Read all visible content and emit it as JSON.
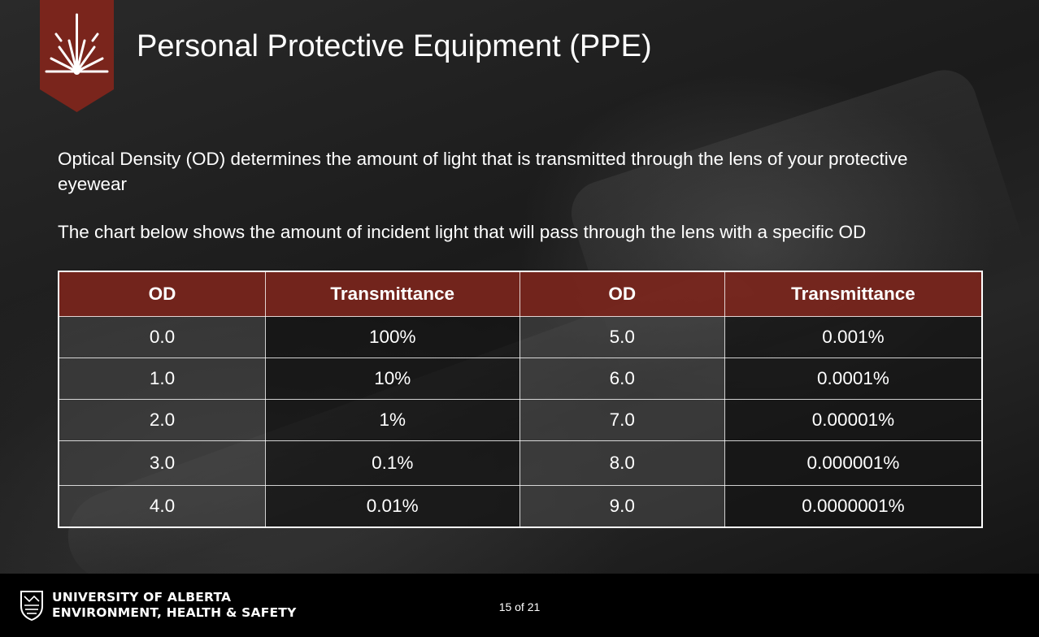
{
  "slide": {
    "title": "Personal Protective Equipment (PPE)",
    "paragraph_1": "Optical Density (OD) determines the amount of light that is transmitted through the lens of your protective eyewear",
    "paragraph_2": "The chart below shows the amount of incident light that will pass through the lens with a specific OD",
    "banner_icon": "laser-burst-icon",
    "colors": {
      "accent": "#7a251c",
      "text": "#ffffff",
      "footer": "#000000"
    }
  },
  "table": {
    "headers": [
      "OD",
      "Transmittance",
      "OD",
      "Transmittance"
    ],
    "rows": [
      [
        "0.0",
        "100%",
        "5.0",
        "0.001%"
      ],
      [
        "1.0",
        "10%",
        "6.0",
        "0.0001%"
      ],
      [
        "2.0",
        "1%",
        "7.0",
        "0.00001%"
      ],
      [
        "3.0",
        "0.1%",
        "8.0",
        "0.000001%"
      ],
      [
        "4.0",
        "0.01%",
        "9.0",
        "0.0000001%"
      ]
    ]
  },
  "footer": {
    "org_line_1": "UNIVERSITY OF ALBERTA",
    "org_line_2": "ENVIRONMENT, HEALTH & SAFETY",
    "page_indicator": "15 of 21",
    "crest_icon": "university-crest-icon"
  }
}
